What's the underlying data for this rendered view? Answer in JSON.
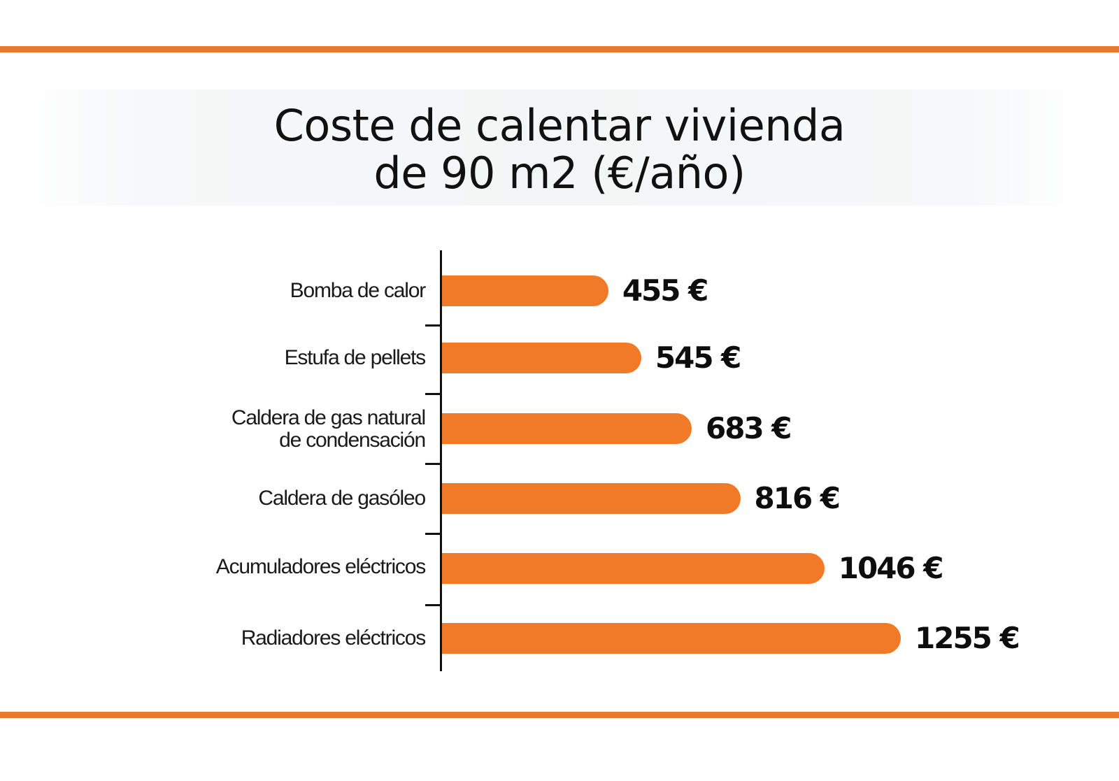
{
  "colors": {
    "accent_rule": "#e07a35",
    "bar": "#f07a28",
    "text": "#111111",
    "title_band": "#f3f5f6"
  },
  "title": {
    "line1": "Coste de calentar vivienda",
    "line2": "de 90 m2 (€/año)"
  },
  "chart_data": {
    "type": "bar",
    "orientation": "horizontal",
    "title": "Coste de calentar vivienda de 90 m2 (€/año)",
    "xlabel": "",
    "ylabel": "",
    "unit": "€/año",
    "categories": [
      "Bomba de calor",
      "Estufa de pellets",
      "Caldera de gas natural de condensación",
      "Caldera de gasóleo",
      "Acumuladores eléctricos",
      "Radiadores eléctricos"
    ],
    "values": [
      455,
      545,
      683,
      816,
      1046,
      1255
    ],
    "data_labels": [
      "455 €",
      "545 €",
      "683 €",
      "816 €",
      "1046 €",
      "1255 €"
    ],
    "xlim": [
      0,
      1255
    ],
    "grid": false,
    "legend": null,
    "bar_color": "#f07a28"
  },
  "rows": [
    {
      "label_line1": "Bomba de calor",
      "label_line2": "",
      "value": 455,
      "value_label": "455 €"
    },
    {
      "label_line1": "Estufa de pellets",
      "label_line2": "",
      "value": 545,
      "value_label": "545 €"
    },
    {
      "label_line1": "Caldera de gas natural",
      "label_line2": "de condensación",
      "value": 683,
      "value_label": "683 €"
    },
    {
      "label_line1": "Caldera de gasóleo",
      "label_line2": "",
      "value": 816,
      "value_label": "816 €"
    },
    {
      "label_line1": "Acumuladores eléctricos",
      "label_line2": "",
      "value": 1046,
      "value_label": "1046 €"
    },
    {
      "label_line1": "Radiadores eléctricos",
      "label_line2": "",
      "value": 1255,
      "value_label": "1255 €"
    }
  ]
}
